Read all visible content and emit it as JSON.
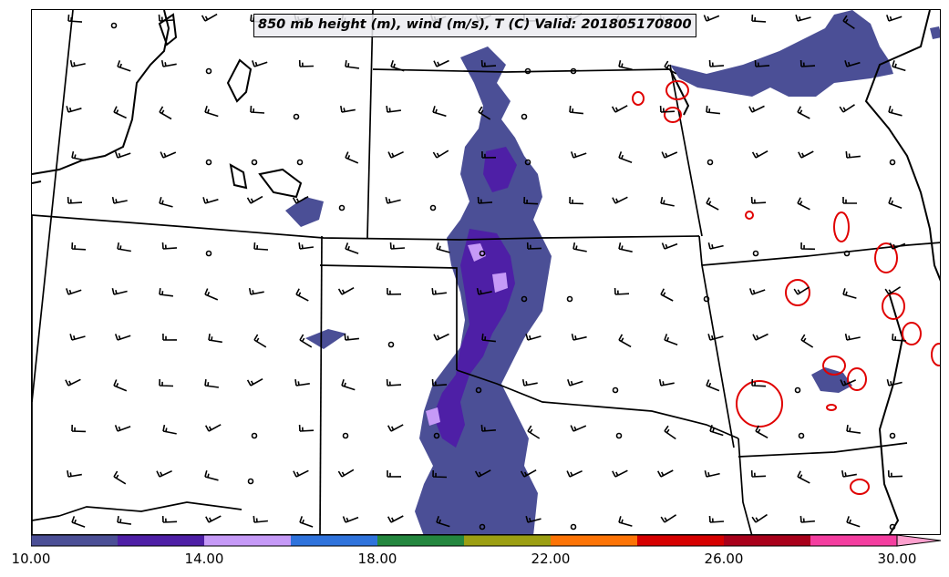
{
  "title": "850 mb height (m), wind (m/s), T (C) Valid: 201805170800",
  "colorbar": {
    "colors": [
      "#4b4f96",
      "#4e1fa6",
      "#c69af7",
      "#2f73dc",
      "#24873f",
      "#9c9f12",
      "#fd7406",
      "#d60000",
      "#a8001a",
      "#f43ea0",
      "#fda0ce"
    ],
    "tick_labels": [
      "10.00",
      "14.00",
      "18.00",
      "22.00",
      "26.00",
      "30.00"
    ],
    "tick_values": [
      10,
      14,
      18,
      22,
      26,
      30
    ],
    "range": [
      10,
      31
    ],
    "extend": "max"
  },
  "temperature_contour_color": "#e00000",
  "wind_barb_color": "#000000"
}
